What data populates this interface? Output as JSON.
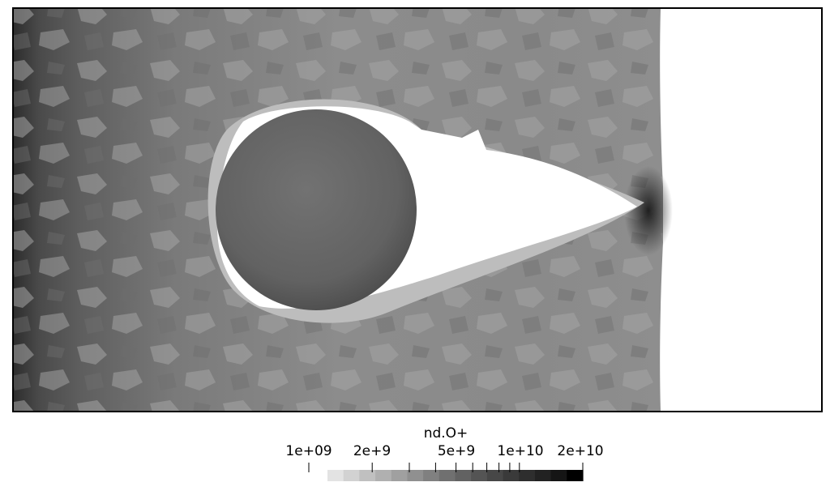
{
  "colorbar": {
    "title": "nd.O+",
    "scale": "log",
    "range": [
      1000000000.0,
      20000000000.0
    ],
    "labels": [
      "1e+09",
      "2e+9",
      "5e+9",
      "1e+10",
      "2e+10"
    ],
    "ramp": [
      "#e3e3e3",
      "#d2d2d2",
      "#c0c0c0",
      "#b0b0b0",
      "#a0a0a0",
      "#909090",
      "#808080",
      "#707070",
      "#626262",
      "#545454",
      "#474747",
      "#3a3a3a",
      "#2e2e2e",
      "#222222",
      "#151515",
      "#000000"
    ]
  },
  "field": {
    "wake_color": "#ffffff",
    "background_color": "#ffffff",
    "sphere_color": "#676767"
  }
}
